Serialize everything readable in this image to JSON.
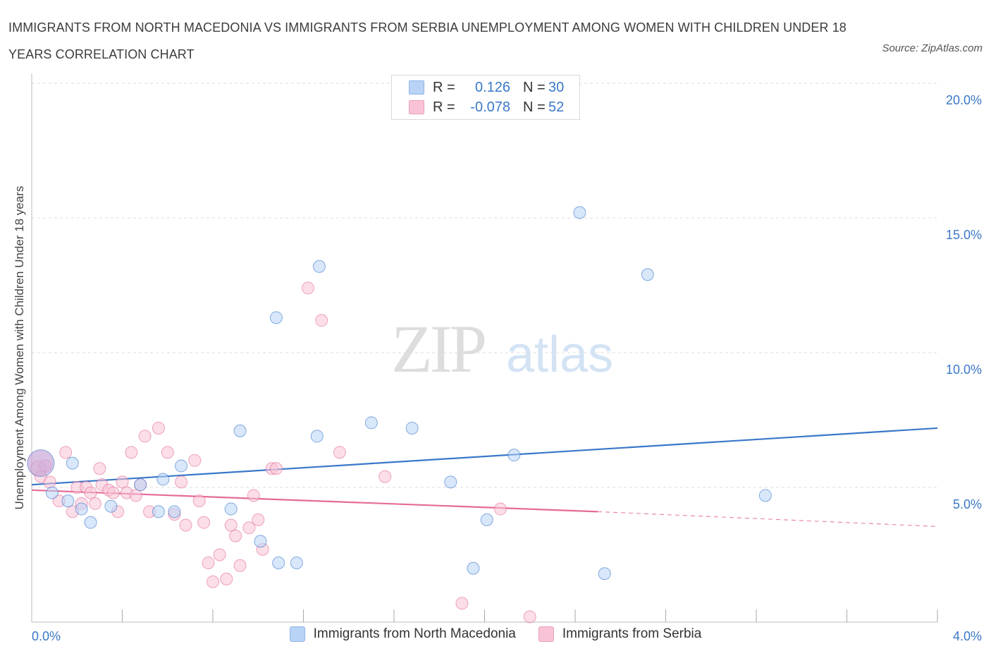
{
  "title": "IMMIGRANTS FROM NORTH MACEDONIA VS IMMIGRANTS FROM SERBIA UNEMPLOYMENT AMONG WOMEN WITH CHILDREN UNDER 18 YEARS CORRELATION CHART",
  "source": "Source: ZipAtlas.com",
  "watermark": {
    "zip": "ZIP",
    "atlas": "atlas"
  },
  "colors": {
    "blue": "#3a78c9",
    "blue_fill": "#b8d3f5",
    "pink": "#e56b98",
    "pink_fill": "#f8c3d6",
    "grid": "#dddddd",
    "tick_label": "#3a78c9"
  },
  "legend": {
    "rows": [
      {
        "r_label": "R =",
        "r_value": "0.126",
        "n_label": "N =",
        "n_value": "30",
        "color": "#b8d3f5"
      },
      {
        "r_label": "R =",
        "r_value": "-0.078",
        "n_label": "N =",
        "n_value": "52",
        "color": "#f8c3d6"
      }
    ]
  },
  "chart_data": {
    "type": "scatter",
    "title": "IMMIGRANTS FROM NORTH MACEDONIA VS IMMIGRANTS FROM SERBIA UNEMPLOYMENT AMONG WOMEN WITH CHILDREN UNDER 18 YEARS CORRELATION CHART",
    "xlabel": "",
    "ylabel": "Unemployment Among Women with Children Under 18 years",
    "xlim": [
      0,
      4
    ],
    "ylim": [
      0,
      20
    ],
    "x_tick_labels": [
      "0.0%",
      "4.0%"
    ],
    "y_ticks": [
      5,
      10,
      15,
      20
    ],
    "y_tick_labels": [
      "5.0%",
      "10.0%",
      "15.0%",
      "20.0%"
    ],
    "grid": true,
    "legend_position": "bottom",
    "series": [
      {
        "name": "Immigrants from North Macedonia",
        "color": "#3a78c9",
        "x": [
          0.04,
          0.09,
          0.16,
          0.22,
          0.26,
          0.56,
          0.63,
          1.08,
          2.42,
          1.27,
          2.13,
          2.72,
          1.95,
          0.92,
          1.68,
          1.5,
          1.26,
          2.01,
          1.85,
          3.24,
          0.35,
          0.18,
          0.58,
          0.66,
          0.48,
          0.88,
          1.01,
          1.09,
          1.17,
          2.53
        ],
        "y": [
          5.9,
          4.8,
          4.5,
          4.2,
          3.7,
          4.1,
          4.1,
          11.3,
          15.2,
          13.2,
          6.2,
          12.9,
          2.0,
          7.1,
          7.2,
          7.4,
          6.9,
          3.8,
          5.2,
          4.7,
          4.3,
          5.9,
          5.3,
          5.8,
          5.1,
          4.2,
          3.0,
          2.2,
          2.2,
          1.8
        ]
      },
      {
        "name": "Immigrants from Serbia",
        "color": "#e56b98",
        "x": [
          0.03,
          0.04,
          0.06,
          0.08,
          0.12,
          0.15,
          0.18,
          0.2,
          0.22,
          0.24,
          0.26,
          0.28,
          0.3,
          0.31,
          0.34,
          0.36,
          0.38,
          0.4,
          0.42,
          0.44,
          0.46,
          0.48,
          0.5,
          0.52,
          0.56,
          0.6,
          0.63,
          0.66,
          0.68,
          0.72,
          0.74,
          0.76,
          0.78,
          0.8,
          0.83,
          0.86,
          0.88,
          0.9,
          0.92,
          0.96,
          0.98,
          1.0,
          1.02,
          1.06,
          1.08,
          1.22,
          1.28,
          1.36,
          1.56,
          1.9,
          2.07,
          2.2
        ],
        "y": [
          5.7,
          5.4,
          5.8,
          5.2,
          4.5,
          6.3,
          4.1,
          5.0,
          4.4,
          5.0,
          4.8,
          4.4,
          5.7,
          5.1,
          4.9,
          4.8,
          4.1,
          5.2,
          4.8,
          6.3,
          4.7,
          5.1,
          6.9,
          4.1,
          7.2,
          6.3,
          4.0,
          5.2,
          3.6,
          6.0,
          4.5,
          3.7,
          2.2,
          1.5,
          2.5,
          1.6,
          3.6,
          3.2,
          2.1,
          3.5,
          4.7,
          3.8,
          2.7,
          5.7,
          5.7,
          12.4,
          11.2,
          6.3,
          5.4,
          0.7,
          4.2,
          0.2
        ]
      }
    ],
    "trendlines": [
      {
        "series": "Immigrants from North Macedonia",
        "x": [
          0,
          4
        ],
        "y": [
          5.1,
          7.2
        ]
      },
      {
        "series": "Immigrants from Serbia",
        "x": [
          0,
          2.5
        ],
        "y": [
          4.9,
          4.1
        ],
        "dashed_extension": {
          "x": [
            2.5,
            4
          ],
          "y": [
            4.1,
            3.55
          ]
        }
      }
    ]
  }
}
